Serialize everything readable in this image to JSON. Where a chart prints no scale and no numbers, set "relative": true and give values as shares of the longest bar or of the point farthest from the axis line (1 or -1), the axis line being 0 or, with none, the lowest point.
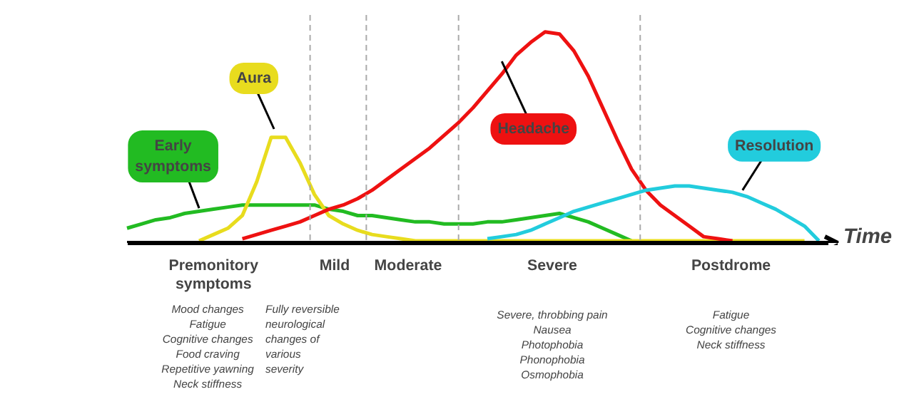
{
  "chart_data": {
    "type": "line",
    "relative": true,
    "xlabel": "Time",
    "categories": [
      null,
      null,
      null,
      null,
      null,
      null,
      null,
      null,
      null,
      null,
      null,
      null,
      null,
      null,
      null,
      null,
      null,
      null,
      null,
      null,
      null,
      null,
      null,
      null,
      null,
      null,
      null,
      null,
      null,
      null,
      null,
      null,
      null,
      null,
      null,
      null,
      null,
      null,
      null,
      null,
      null,
      null,
      null,
      null,
      null,
      null,
      null,
      null,
      null
    ],
    "series": [
      {
        "name": "Early\nsymptoms",
        "color": "#22bb22",
        "values": [
          0.07,
          0.09,
          0.11,
          0.12,
          0.14,
          0.15,
          0.16,
          0.17,
          0.18,
          0.18,
          0.18,
          0.18,
          0.18,
          0.18,
          0.16,
          0.15,
          0.13,
          0.13,
          0.12,
          0.11,
          0.1,
          0.1,
          0.09,
          0.09,
          0.09,
          0.1,
          0.1,
          0.11,
          0.12,
          0.13,
          0.14,
          0.12,
          0.1,
          0.07,
          0.04,
          0.01,
          null,
          null,
          null,
          null,
          null,
          null,
          null,
          null,
          null,
          null,
          null,
          null,
          null
        ]
      },
      {
        "name": "Aura",
        "color": "#e8dc1e",
        "values": [
          null,
          null,
          null,
          null,
          null,
          0.01,
          0.04,
          0.07,
          0.13,
          0.29,
          0.5,
          0.5,
          0.38,
          0.23,
          0.13,
          0.09,
          0.06,
          0.04,
          0.03,
          0.02,
          0.01,
          0.01,
          0.01,
          0.01,
          0.01,
          0.01,
          0.01,
          0.01,
          0.01,
          0.01,
          0.01,
          0.01,
          0.01,
          0.01,
          0.01,
          0.01,
          0.01,
          0.01,
          0.01,
          0.01,
          0.01,
          0.01,
          0.01,
          0.01,
          0.01,
          0.01,
          0.01,
          0.01,
          null
        ]
      },
      {
        "name": "Headache",
        "color": "#ee1111",
        "values": [
          null,
          null,
          null,
          null,
          null,
          null,
          null,
          null,
          0.02,
          0.04,
          0.06,
          0.08,
          0.1,
          0.13,
          0.16,
          0.18,
          0.21,
          0.25,
          0.3,
          0.35,
          0.4,
          0.45,
          0.51,
          0.57,
          0.64,
          0.72,
          0.8,
          0.89,
          0.95,
          1,
          0.99,
          0.91,
          0.79,
          0.64,
          0.49,
          0.35,
          0.25,
          0.18,
          0.13,
          0.08,
          0.03,
          0.02,
          0.01,
          null,
          null,
          null,
          null,
          null,
          null
        ]
      },
      {
        "name": "Resolution",
        "color": "#22ccdd",
        "values": [
          null,
          null,
          null,
          null,
          null,
          null,
          null,
          null,
          null,
          null,
          null,
          null,
          null,
          null,
          null,
          null,
          null,
          null,
          null,
          null,
          null,
          null,
          null,
          null,
          null,
          0.02,
          0.03,
          0.04,
          0.06,
          0.09,
          0.12,
          0.15,
          0.17,
          0.19,
          0.21,
          0.23,
          0.25,
          0.26,
          0.27,
          0.27,
          0.26,
          0.25,
          0.24,
          0.22,
          0.19,
          0.16,
          0.12,
          0.08,
          0.01
        ]
      }
    ],
    "annotations": [
      "Premonitory\nsymptoms",
      "Mild",
      "Moderate",
      "Severe",
      "Postdrome",
      "Mood changes\nFatigue\nCognitive changes\nFood craving\nRepetitive yawning\nNeck stiffness",
      "Fully reversible\nneurological\nchanges of\nvarious\nseverity",
      "Severe, throbbing pain\nNausea\nPhotophobia\nPhonophobia\nOsmophobia",
      "Fatigue\nCognitive changes\nNeck stiffness"
    ],
    "grid": false,
    "marker": "none",
    "line_style": "solid"
  }
}
